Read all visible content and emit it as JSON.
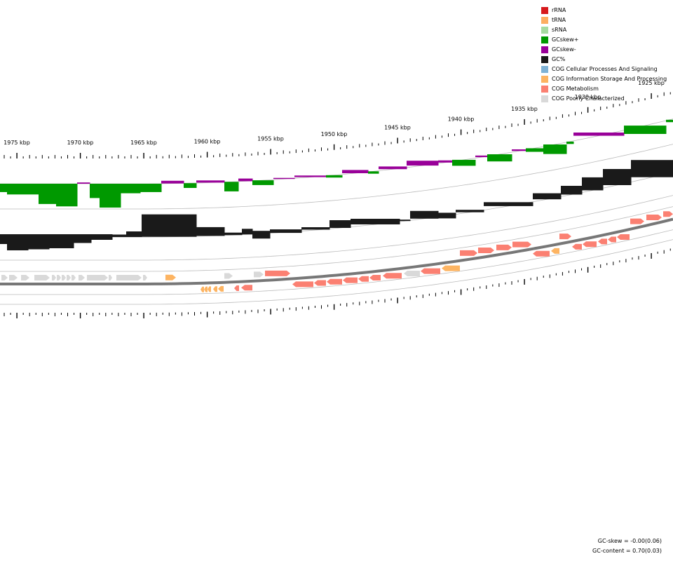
{
  "legend": {
    "items": [
      {
        "label": "rRNA",
        "color": "#d7191c"
      },
      {
        "label": "tRNA",
        "color": "#fdae61"
      },
      {
        "label": "sRNA",
        "color": "#a6dba0"
      },
      {
        "label": "GCskew+",
        "color": "#009900"
      },
      {
        "label": "GCskew-",
        "color": "#990099"
      },
      {
        "label": "GC%",
        "color": "#1a1a1a"
      },
      {
        "label": "COG Cellular Processes And Signaling",
        "color": "#7fb2d5"
      },
      {
        "label": "COG Information Storage And Processing",
        "color": "#fdb462"
      },
      {
        "label": "COG Metabolism",
        "color": "#fb8072"
      },
      {
        "label": "COG Poorly Characterized",
        "color": "#d9d9d9"
      }
    ]
  },
  "scale": {
    "labels": [
      "1975 kbp",
      "1970 kbp",
      "1965 kbp",
      "1960 kbp",
      "1955 kbp",
      "1950 kbp",
      "1945 kbp",
      "1940 kbp",
      "1935 kbp",
      "1930 kbp",
      "1925 kbp"
    ]
  },
  "stats": {
    "gc_skew": "GC-skew = -0.00(0.06)",
    "gc_content": "GC-content = 0.70(0.03)"
  },
  "tracks": {
    "gc_skew": [
      {
        "x0": 0,
        "x1": 10,
        "v": -0.35
      },
      {
        "x0": 10,
        "x1": 55,
        "v": -0.45
      },
      {
        "x0": 55,
        "x1": 80,
        "v": -0.85
      },
      {
        "x0": 80,
        "x1": 110,
        "v": -0.95
      },
      {
        "x0": 110,
        "x1": 128,
        "v": 0.12
      },
      {
        "x0": 128,
        "x1": 142,
        "v": -0.6
      },
      {
        "x0": 142,
        "x1": 172,
        "v": -1.0
      },
      {
        "x0": 172,
        "x1": 200,
        "v": -0.4
      },
      {
        "x0": 200,
        "x1": 230,
        "v": -0.35
      },
      {
        "x0": 230,
        "x1": 262,
        "v": 0.25
      },
      {
        "x0": 262,
        "x1": 280,
        "v": -0.2
      },
      {
        "x0": 280,
        "x1": 320,
        "v": 0.2
      },
      {
        "x0": 320,
        "x1": 340,
        "v": -0.4
      },
      {
        "x0": 340,
        "x1": 360,
        "v": 0.25
      },
      {
        "x0": 360,
        "x1": 390,
        "v": -0.2
      },
      {
        "x0": 390,
        "x1": 420,
        "v": 0.1
      },
      {
        "x0": 420,
        "x1": 465,
        "v": 0.15
      },
      {
        "x0": 465,
        "x1": 488,
        "v": -0.1
      },
      {
        "x0": 488,
        "x1": 525,
        "v": 0.3
      },
      {
        "x0": 525,
        "x1": 540,
        "v": -0.1
      },
      {
        "x0": 540,
        "x1": 580,
        "v": 0.25
      },
      {
        "x0": 580,
        "x1": 625,
        "v": 0.45
      },
      {
        "x0": 625,
        "x1": 645,
        "v": 0.2
      },
      {
        "x0": 645,
        "x1": 678,
        "v": -0.25
      },
      {
        "x0": 678,
        "x1": 695,
        "v": 0.15
      },
      {
        "x0": 695,
        "x1": 730,
        "v": -0.3
      },
      {
        "x0": 730,
        "x1": 750,
        "v": 0.15
      },
      {
        "x0": 750,
        "x1": 775,
        "v": -0.15
      },
      {
        "x0": 775,
        "x1": 808,
        "v": -0.4
      },
      {
        "x0": 808,
        "x1": 818,
        "v": -0.1
      },
      {
        "x0": 818,
        "x1": 890,
        "v": 0.3
      },
      {
        "x0": 890,
        "x1": 950,
        "v": -0.35
      },
      {
        "x0": 950,
        "x1": 960,
        "v": -0.1
      }
    ],
    "gc_content": [
      {
        "x0": 0,
        "x1": 10,
        "v": -0.4
      },
      {
        "x0": 10,
        "x1": 40,
        "v": -0.7
      },
      {
        "x0": 40,
        "x1": 70,
        "v": -0.65
      },
      {
        "x0": 70,
        "x1": 105,
        "v": -0.6
      },
      {
        "x0": 105,
        "x1": 130,
        "v": -0.35
      },
      {
        "x0": 130,
        "x1": 160,
        "v": -0.2
      },
      {
        "x0": 160,
        "x1": 180,
        "v": 0.05
      },
      {
        "x0": 180,
        "x1": 202,
        "v": 0.2
      },
      {
        "x0": 202,
        "x1": 280,
        "v": 1.0
      },
      {
        "x0": 280,
        "x1": 320,
        "v": 0.35
      },
      {
        "x0": 320,
        "x1": 345,
        "v": 0.05
      },
      {
        "x0": 345,
        "x1": 360,
        "v": 0.2
      },
      {
        "x0": 360,
        "x1": 385,
        "v": -0.3
      },
      {
        "x0": 385,
        "x1": 430,
        "v": -0.1
      },
      {
        "x0": 430,
        "x1": 470,
        "v": -0.05
      },
      {
        "x0": 470,
        "x1": 500,
        "v": 0.3
      },
      {
        "x0": 500,
        "x1": 570,
        "v": 0.2
      },
      {
        "x0": 570,
        "x1": 585,
        "v": 0.0
      },
      {
        "x0": 585,
        "x1": 625,
        "v": 0.3
      },
      {
        "x0": 625,
        "x1": 650,
        "v": -0.2
      },
      {
        "x0": 650,
        "x1": 690,
        "v": 0.05
      },
      {
        "x0": 690,
        "x1": 760,
        "v": 0.12
      },
      {
        "x0": 760,
        "x1": 800,
        "v": 0.22
      },
      {
        "x0": 800,
        "x1": 830,
        "v": 0.35
      },
      {
        "x0": 830,
        "x1": 860,
        "v": 0.55
      },
      {
        "x0": 860,
        "x1": 900,
        "v": 0.7
      },
      {
        "x0": 900,
        "x1": 960,
        "v": 0.75
      }
    ],
    "genes_forward": [
      {
        "x": 2,
        "w": 9,
        "cog": "Poorly Characterized"
      },
      {
        "x": 13,
        "w": 12,
        "cog": "Poorly Characterized"
      },
      {
        "x": 30,
        "w": 12,
        "cog": "Poorly Characterized"
      },
      {
        "x": 49,
        "w": 22,
        "cog": "Poorly Characterized"
      },
      {
        "x": 74,
        "w": 6,
        "cog": "Poorly Characterized"
      },
      {
        "x": 81,
        "w": 6,
        "cog": "Poorly Characterized"
      },
      {
        "x": 88,
        "w": 6,
        "cog": "Poorly Characterized"
      },
      {
        "x": 95,
        "w": 6,
        "cog": "Poorly Characterized"
      },
      {
        "x": 102,
        "w": 6,
        "cog": "Poorly Characterized"
      },
      {
        "x": 112,
        "w": 9,
        "cog": "Poorly Characterized"
      },
      {
        "x": 124,
        "w": 30,
        "cog": "Poorly Characterized"
      },
      {
        "x": 155,
        "w": 5,
        "cog": "Poorly Characterized"
      },
      {
        "x": 166,
        "w": 36,
        "cog": "Poorly Characterized"
      },
      {
        "x": 204,
        "w": 6,
        "cog": "Poorly Characterized"
      },
      {
        "x": 236,
        "w": 15,
        "cog": "Information Storage And Processing"
      },
      {
        "x": 320,
        "w": 12,
        "cog": "Poorly Characterized"
      },
      {
        "x": 362,
        "w": 14,
        "cog": "Poorly Characterized"
      },
      {
        "x": 378,
        "w": 36,
        "cog": "Metabolism"
      },
      {
        "x": 656,
        "w": 25,
        "cog": "Metabolism"
      },
      {
        "x": 682,
        "w": 23,
        "cog": "Metabolism"
      },
      {
        "x": 708,
        "w": 22,
        "cog": "Metabolism"
      },
      {
        "x": 731,
        "w": 27,
        "cog": "Metabolism"
      },
      {
        "x": 798,
        "w": 17,
        "cog": "Metabolism"
      },
      {
        "x": 899,
        "w": 20,
        "cog": "Metabolism"
      },
      {
        "x": 922,
        "w": 22,
        "cog": "Metabolism"
      },
      {
        "x": 946,
        "w": 14,
        "cog": "Metabolism"
      }
    ],
    "genes_reverse": [
      {
        "x": 286,
        "w": 5,
        "cog": "Information Storage And Processing"
      },
      {
        "x": 291,
        "w": 5,
        "cog": "Information Storage And Processing"
      },
      {
        "x": 296,
        "w": 5,
        "cog": "Information Storage And Processing"
      },
      {
        "x": 304,
        "w": 6,
        "cog": "Information Storage And Processing"
      },
      {
        "x": 311,
        "w": 8,
        "cog": "Information Storage And Processing"
      },
      {
        "x": 334,
        "w": 7,
        "cog": "Metabolism"
      },
      {
        "x": 344,
        "w": 16,
        "cog": "Metabolism"
      },
      {
        "x": 417,
        "w": 30,
        "cog": "Metabolism"
      },
      {
        "x": 448,
        "w": 17,
        "cog": "Metabolism"
      },
      {
        "x": 466,
        "w": 22,
        "cog": "Metabolism"
      },
      {
        "x": 489,
        "w": 21,
        "cog": "Metabolism"
      },
      {
        "x": 511,
        "w": 15,
        "cog": "Metabolism"
      },
      {
        "x": 527,
        "w": 16,
        "cog": "Metabolism"
      },
      {
        "x": 546,
        "w": 27,
        "cog": "Metabolism"
      },
      {
        "x": 576,
        "w": 23,
        "cog": "Poorly Characterized"
      },
      {
        "x": 600,
        "w": 28,
        "cog": "Metabolism"
      },
      {
        "x": 630,
        "w": 26,
        "cog": "Information Storage And Processing"
      },
      {
        "x": 760,
        "w": 24,
        "cog": "Metabolism"
      },
      {
        "x": 786,
        "w": 12,
        "cog": "Information Storage And Processing"
      },
      {
        "x": 816,
        "w": 14,
        "cog": "Metabolism"
      },
      {
        "x": 831,
        "w": 20,
        "cog": "Metabolism"
      },
      {
        "x": 853,
        "w": 13,
        "cog": "Metabolism"
      },
      {
        "x": 867,
        "w": 12,
        "cog": "Metabolism"
      },
      {
        "x": 880,
        "w": 18,
        "cog": "Metabolism"
      }
    ]
  }
}
